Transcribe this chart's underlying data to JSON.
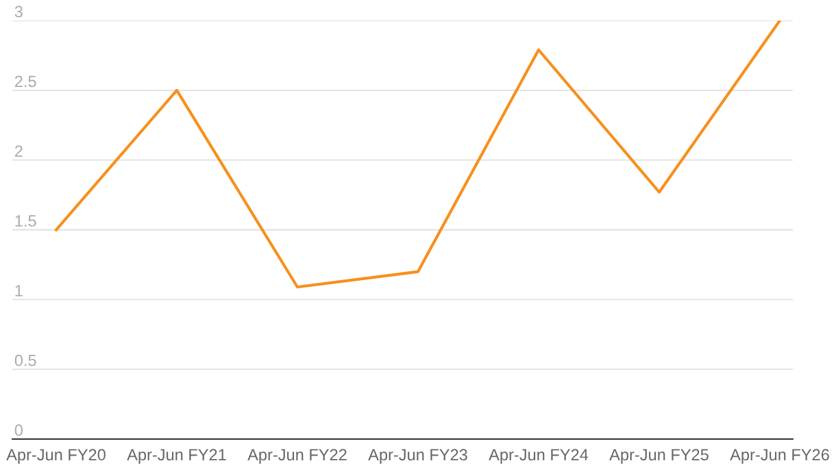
{
  "chart_data": {
    "type": "line",
    "categories": [
      "Apr-Jun FY20",
      "Apr-Jun FY21",
      "Apr-Jun FY22",
      "Apr-Jun FY23",
      "Apr-Jun FY24",
      "Apr-Jun FY25",
      "Apr-Jun FY26"
    ],
    "series": [
      {
        "color": "#f7901e",
        "values": [
          1.5,
          2.5,
          1.09,
          1.2,
          2.79,
          1.77,
          3.0
        ]
      }
    ],
    "ylim": [
      0,
      3
    ],
    "yticks": [
      0,
      0.5,
      1,
      1.5,
      2,
      2.5,
      3
    ],
    "grid": "y",
    "legend": false,
    "marker": "none",
    "line_style": "solid"
  }
}
